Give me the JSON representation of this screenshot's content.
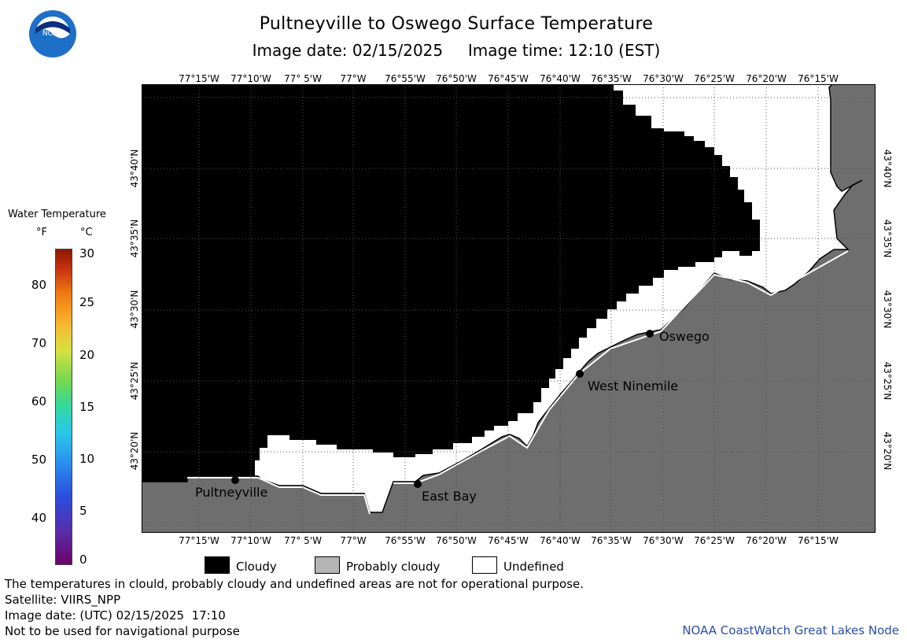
{
  "title": "Pultneyville to Oswego Surface Temperature",
  "subtitle": "Image date: 02/15/2025     Image time: 12:10 (EST)",
  "logo_text": "NOAA",
  "longitudes": [
    "77°15'W",
    "77°10'W",
    "77° 5'W",
    "77°W",
    "76°55'W",
    "76°50'W",
    "76°45'W",
    "76°40'W",
    "76°35'W",
    "76°30'W",
    "76°25'W",
    "76°20'W",
    "76°15'W"
  ],
  "latitudes": [
    "43°40'N",
    "43°35'N",
    "43°30'N",
    "43°25'N",
    "43°20'N"
  ],
  "legend": {
    "title": "Water Temperature",
    "unit_f": "°F",
    "unit_c": "°C",
    "ticks_f": [
      "80",
      "70",
      "60",
      "50",
      "40"
    ],
    "ticks_c": [
      "30",
      "25",
      "20",
      "15",
      "10",
      "5",
      "0"
    ]
  },
  "places": [
    {
      "name": "Pultneyville"
    },
    {
      "name": "East Bay"
    },
    {
      "name": "West Ninemile"
    },
    {
      "name": "Oswego"
    }
  ],
  "key": [
    {
      "label": "Cloudy",
      "color": "#000000"
    },
    {
      "label": "Probably cloudy",
      "color": "#b4b4b4"
    },
    {
      "label": "Undefined",
      "color": "#ffffff"
    }
  ],
  "footer": {
    "line1": "The temperatures in clould, probably cloudy and undefined areas are not for operational purpose.",
    "line2": "Satellite: VIIRS_NPP",
    "line3": "Image date: (UTC) 02/15/2025  17:10",
    "line4": "Not to be used for navigational purpose",
    "credit": "NOAA CoastWatch Great Lakes Node"
  },
  "colors": {
    "land": "#6e6e6e",
    "cloud": "#000000",
    "undefined": "#ffffff"
  }
}
